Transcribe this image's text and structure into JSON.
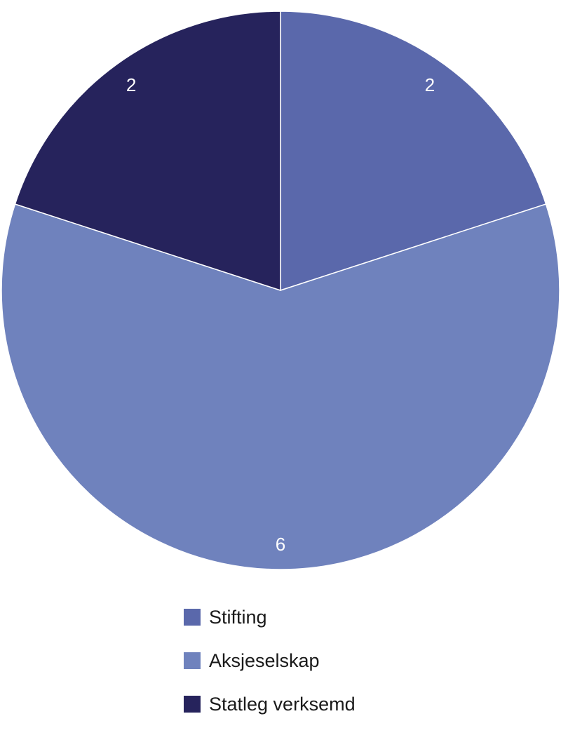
{
  "chart_data": {
    "type": "pie",
    "title": "",
    "start_angle_deg": 0,
    "direction": "clockwise",
    "slices": [
      {
        "label": "Stifting",
        "value": 2,
        "color": "#5a68ab"
      },
      {
        "label": "Aksjeselskap",
        "value": 6,
        "color": "#6f82bd"
      },
      {
        "label": "Statleg verksemd",
        "value": 2,
        "color": "#26235c"
      }
    ],
    "data_labels": [
      "2",
      "6",
      "2"
    ],
    "legend_position": "bottom-center"
  },
  "colors": {
    "background": "#ffffff",
    "slice_border": "#ffffff",
    "data_label": "#ffffff",
    "legend_text": "#1a1a1a"
  }
}
